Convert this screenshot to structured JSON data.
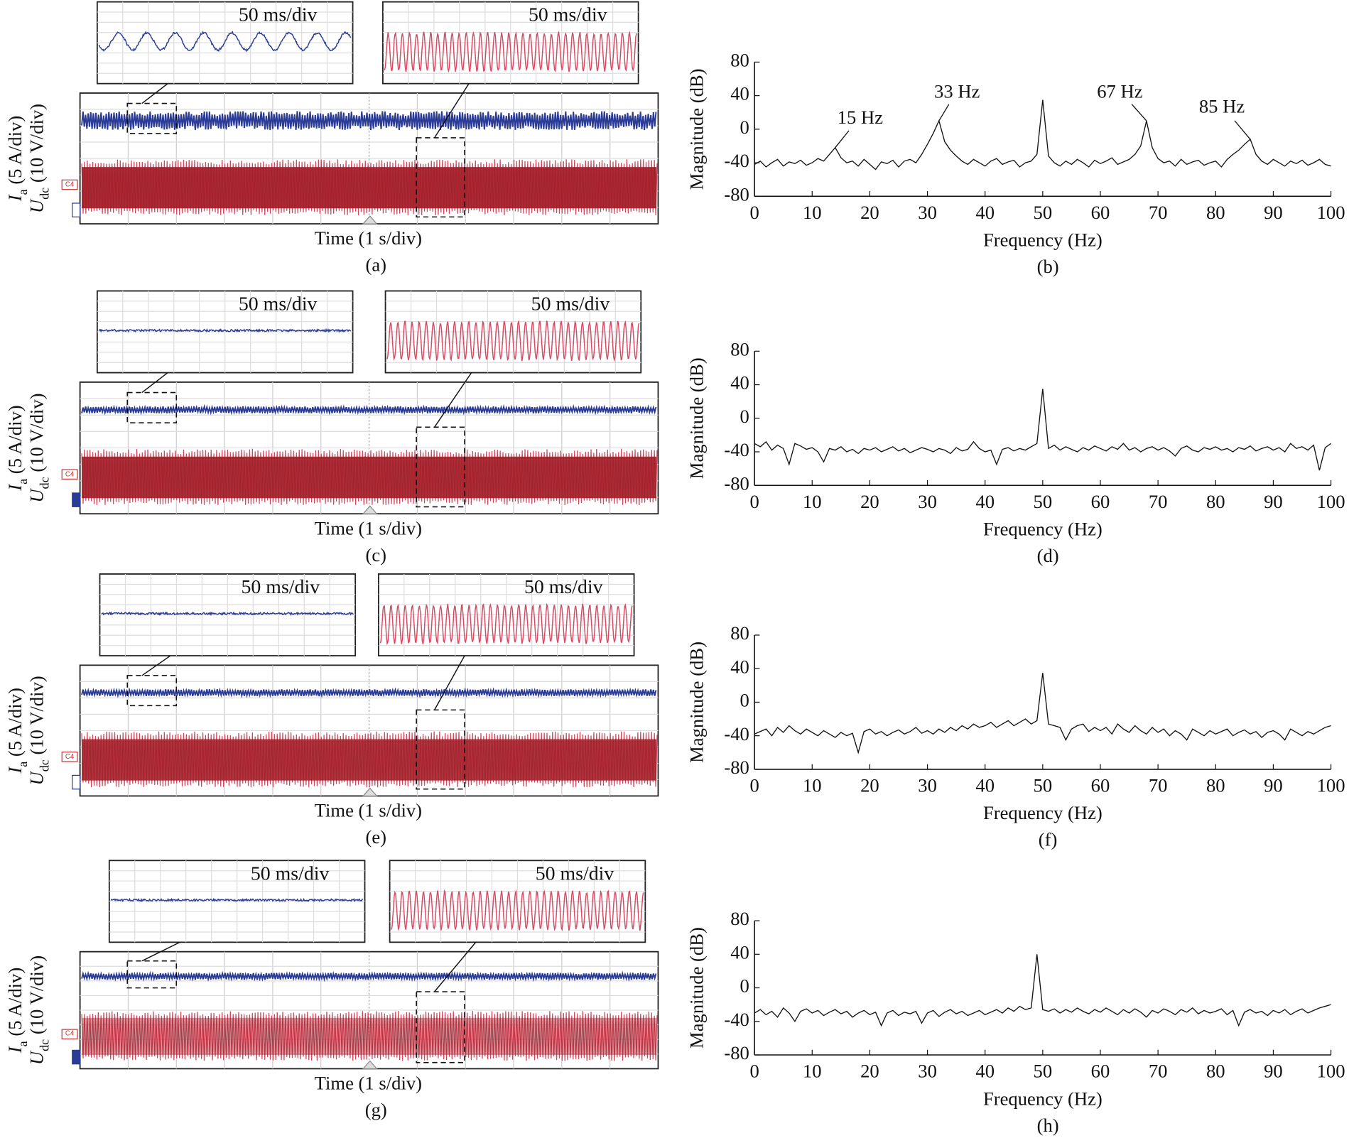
{
  "scope_panels": [
    {
      "inset_left": "50 ms/div",
      "inset_right": "50 ms/div",
      "channel_tag": "C4",
      "ylabel_current": {
        "symbol": "I",
        "subscript": "a",
        "unit": " (5 A/div)"
      },
      "ylabel_voltage": {
        "symbol": "U",
        "subscript": "dc",
        "unit": " (10 V/div)"
      },
      "xlabel": "Time (1 s/div)",
      "caption": "(a)"
    },
    {
      "inset_left": "50 ms/div",
      "inset_right": "50 ms/div",
      "channel_tag": "C4",
      "ylabel_current": {
        "symbol": "I",
        "subscript": "a",
        "unit": " (5 A/div)"
      },
      "ylabel_voltage": {
        "symbol": "U",
        "subscript": "dc",
        "unit": " (10 V/div)"
      },
      "xlabel": "Time (1 s/div)",
      "caption": "(c)"
    },
    {
      "inset_left": "50 ms/div",
      "inset_right": "50 ms/div",
      "channel_tag": "C4",
      "ylabel_current": {
        "symbol": "I",
        "subscript": "a",
        "unit": " (5 A/div)"
      },
      "ylabel_voltage": {
        "symbol": "U",
        "subscript": "dc",
        "unit": " (10 V/div)"
      },
      "xlabel": "Time (1 s/div)",
      "caption": "(e)"
    },
    {
      "inset_left": "50 ms/div",
      "inset_right": "50 ms/div",
      "channel_tag": "C4",
      "ylabel_current": {
        "symbol": "I",
        "subscript": "a",
        "unit": " (5 A/div)"
      },
      "ylabel_voltage": {
        "symbol": "U",
        "subscript": "dc",
        "unit": " (10 V/div)"
      },
      "xlabel": "Time (1 s/div)",
      "caption": "(g)"
    }
  ],
  "chart_data": [
    {
      "type": "line",
      "xlabel": "Frequency (Hz)",
      "ylabel": "Magnitude (dB)",
      "caption": "(b)",
      "color": "#111111",
      "xlim": [
        0,
        100
      ],
      "ylim": [
        -80,
        80
      ],
      "xticks": [
        0,
        10,
        20,
        30,
        40,
        50,
        60,
        70,
        80,
        90,
        100
      ],
      "yticks": [
        80,
        40,
        0,
        -40,
        -80
      ],
      "x": [
        0,
        1,
        2,
        3,
        4,
        5,
        6,
        7,
        8,
        9,
        10,
        11,
        12,
        13,
        14,
        15,
        16,
        17,
        18,
        19,
        20,
        21,
        22,
        23,
        24,
        25,
        26,
        27,
        28,
        29,
        30,
        31,
        32,
        33,
        34,
        35,
        36,
        37,
        38,
        39,
        40,
        41,
        42,
        43,
        44,
        45,
        46,
        47,
        48,
        49,
        50,
        51,
        52,
        53,
        54,
        55,
        56,
        57,
        58,
        59,
        60,
        61,
        62,
        63,
        64,
        65,
        66,
        67,
        68,
        69,
        70,
        71,
        72,
        73,
        74,
        75,
        76,
        77,
        78,
        79,
        80,
        81,
        82,
        83,
        84,
        85,
        86,
        87,
        88,
        89,
        90,
        91,
        92,
        93,
        94,
        95,
        96,
        97,
        98,
        99,
        100
      ],
      "values": [
        -42,
        -38,
        -45,
        -40,
        -36,
        -44,
        -39,
        -41,
        -37,
        -43,
        -40,
        -35,
        -38,
        -30,
        -22,
        -34,
        -40,
        -38,
        -44,
        -36,
        -42,
        -48,
        -39,
        -41,
        -37,
        -45,
        -38,
        -36,
        -40,
        -30,
        -18,
        -5,
        10,
        -15,
        -25,
        -32,
        -38,
        -42,
        -36,
        -40,
        -44,
        -38,
        -35,
        -42,
        -39,
        -37,
        -45,
        -40,
        -38,
        -30,
        35,
        -32,
        -40,
        -44,
        -38,
        -42,
        -36,
        -40,
        -45,
        -37,
        -41,
        -38,
        -34,
        -42,
        -39,
        -36,
        -30,
        -20,
        10,
        -22,
        -35,
        -40,
        -38,
        -44,
        -36,
        -42,
        -39,
        -37,
        -43,
        -40,
        -38,
        -45,
        -36,
        -30,
        -25,
        -18,
        -12,
        -30,
        -38,
        -42,
        -36,
        -40,
        -44,
        -38,
        -41,
        -37,
        -43,
        -40,
        -36,
        -42,
        -44
      ],
      "annotations": [
        {
          "text": "15 Hz",
          "x": 14,
          "y": -22
        },
        {
          "text": "33 Hz",
          "x": 32,
          "y": 10
        },
        {
          "text": "67 Hz",
          "x": 68,
          "y": 10
        },
        {
          "text": "85 Hz",
          "x": 86,
          "y": -12
        }
      ]
    },
    {
      "type": "line",
      "xlabel": "Frequency (Hz)",
      "ylabel": "Magnitude (dB)",
      "caption": "(d)",
      "color": "#111111",
      "xlim": [
        0,
        100
      ],
      "ylim": [
        -80,
        80
      ],
      "xticks": [
        0,
        10,
        20,
        30,
        40,
        50,
        60,
        70,
        80,
        90,
        100
      ],
      "yticks": [
        80,
        40,
        0,
        -40,
        -80
      ],
      "x": [
        0,
        1,
        2,
        3,
        4,
        5,
        6,
        7,
        8,
        9,
        10,
        11,
        12,
        13,
        14,
        15,
        16,
        17,
        18,
        19,
        20,
        21,
        22,
        23,
        24,
        25,
        26,
        27,
        28,
        29,
        30,
        31,
        32,
        33,
        34,
        35,
        36,
        37,
        38,
        39,
        40,
        41,
        42,
        43,
        44,
        45,
        46,
        47,
        48,
        49,
        50,
        51,
        52,
        53,
        54,
        55,
        56,
        57,
        58,
        59,
        60,
        61,
        62,
        63,
        64,
        65,
        66,
        67,
        68,
        69,
        70,
        71,
        72,
        73,
        74,
        75,
        76,
        77,
        78,
        79,
        80,
        81,
        82,
        83,
        84,
        85,
        86,
        87,
        88,
        89,
        90,
        91,
        92,
        93,
        94,
        95,
        96,
        97,
        98,
        99,
        100
      ],
      "values": [
        -30,
        -34,
        -28,
        -38,
        -32,
        -36,
        -55,
        -30,
        -33,
        -37,
        -35,
        -40,
        -52,
        -36,
        -38,
        -34,
        -40,
        -37,
        -42,
        -36,
        -38,
        -35,
        -40,
        -37,
        -34,
        -39,
        -36,
        -41,
        -38,
        -35,
        -37,
        -40,
        -36,
        -38,
        -42,
        -35,
        -39,
        -37,
        -28,
        -36,
        -40,
        -38,
        -55,
        -37,
        -35,
        -39,
        -36,
        -38,
        -34,
        -30,
        35,
        -36,
        -32,
        -38,
        -34,
        -37,
        -40,
        -35,
        -38,
        -33,
        -36,
        -39,
        -34,
        -37,
        -30,
        -38,
        -35,
        -40,
        -36,
        -34,
        -38,
        -35,
        -39,
        -45,
        -36,
        -33,
        -38,
        -40,
        -35,
        -37,
        -34,
        -38,
        -36,
        -40,
        -35,
        -37,
        -33,
        -39,
        -36,
        -34,
        -38,
        -35,
        -40,
        -30,
        -36,
        -34,
        -38,
        -32,
        -62,
        -35,
        -30
      ]
    },
    {
      "type": "line",
      "xlabel": "Frequency (Hz)",
      "ylabel": "Magnitude (dB)",
      "caption": "(f)",
      "color": "#111111",
      "xlim": [
        0,
        100
      ],
      "ylim": [
        -80,
        80
      ],
      "xticks": [
        0,
        10,
        20,
        30,
        40,
        50,
        60,
        70,
        80,
        90,
        100
      ],
      "yticks": [
        80,
        40,
        0,
        -40,
        -80
      ],
      "x": [
        0,
        1,
        2,
        3,
        4,
        5,
        6,
        7,
        8,
        9,
        10,
        11,
        12,
        13,
        14,
        15,
        16,
        17,
        18,
        19,
        20,
        21,
        22,
        23,
        24,
        25,
        26,
        27,
        28,
        29,
        30,
        31,
        32,
        33,
        34,
        35,
        36,
        37,
        38,
        39,
        40,
        41,
        42,
        43,
        44,
        45,
        46,
        47,
        48,
        49,
        50,
        51,
        52,
        53,
        54,
        55,
        56,
        57,
        58,
        59,
        60,
        61,
        62,
        63,
        64,
        65,
        66,
        67,
        68,
        69,
        70,
        71,
        72,
        73,
        74,
        75,
        76,
        77,
        78,
        79,
        80,
        81,
        82,
        83,
        84,
        85,
        86,
        87,
        88,
        89,
        90,
        91,
        92,
        93,
        94,
        95,
        96,
        97,
        98,
        99,
        100
      ],
      "values": [
        -38,
        -35,
        -32,
        -40,
        -30,
        -36,
        -28,
        -34,
        -38,
        -32,
        -36,
        -40,
        -34,
        -38,
        -42,
        -36,
        -40,
        -37,
        -60,
        -35,
        -32,
        -38,
        -35,
        -40,
        -36,
        -33,
        -38,
        -35,
        -30,
        -37,
        -34,
        -38,
        -32,
        -36,
        -30,
        -34,
        -28,
        -32,
        -26,
        -30,
        -28,
        -24,
        -30,
        -26,
        -22,
        -28,
        -24,
        -20,
        -26,
        -22,
        35,
        -26,
        -28,
        -30,
        -45,
        -32,
        -28,
        -26,
        -35,
        -30,
        -34,
        -30,
        -38,
        -26,
        -32,
        -36,
        -28,
        -34,
        -38,
        -30,
        -36,
        -32,
        -40,
        -34,
        -38,
        -45,
        -32,
        -36,
        -40,
        -34,
        -38,
        -35,
        -32,
        -40,
        -36,
        -33,
        -38,
        -35,
        -42,
        -36,
        -34,
        -38,
        -45,
        -32,
        -36,
        -40,
        -35,
        -38,
        -34,
        -30,
        -28
      ]
    },
    {
      "type": "line",
      "xlabel": "Frequency (Hz)",
      "ylabel": "Magnitude (dB)",
      "caption": "(h)",
      "color": "#111111",
      "xlim": [
        0,
        100
      ],
      "ylim": [
        -80,
        80
      ],
      "xticks": [
        0,
        10,
        20,
        30,
        40,
        50,
        60,
        70,
        80,
        90,
        100
      ],
      "yticks": [
        80,
        40,
        0,
        -40,
        -80
      ],
      "x": [
        0,
        1,
        2,
        3,
        4,
        5,
        6,
        7,
        8,
        9,
        10,
        11,
        12,
        13,
        14,
        15,
        16,
        17,
        18,
        19,
        20,
        21,
        22,
        23,
        24,
        25,
        26,
        27,
        28,
        29,
        30,
        31,
        32,
        33,
        34,
        35,
        36,
        37,
        38,
        39,
        40,
        41,
        42,
        43,
        44,
        45,
        46,
        47,
        48,
        49,
        50,
        51,
        52,
        53,
        54,
        55,
        56,
        57,
        58,
        59,
        60,
        61,
        62,
        63,
        64,
        65,
        66,
        67,
        68,
        69,
        70,
        71,
        72,
        73,
        74,
        75,
        76,
        77,
        78,
        79,
        80,
        81,
        82,
        83,
        84,
        85,
        86,
        87,
        88,
        89,
        90,
        91,
        92,
        93,
        94,
        95,
        96,
        97,
        98,
        99,
        100
      ],
      "values": [
        -30,
        -26,
        -32,
        -28,
        -35,
        -24,
        -30,
        -40,
        -28,
        -25,
        -30,
        -27,
        -33,
        -29,
        -26,
        -31,
        -28,
        -35,
        -30,
        -27,
        -32,
        -29,
        -45,
        -30,
        -27,
        -33,
        -29,
        -31,
        -28,
        -42,
        -30,
        -27,
        -34,
        -29,
        -26,
        -31,
        -28,
        -33,
        -30,
        -27,
        -32,
        -29,
        -26,
        -30,
        -24,
        -28,
        -22,
        -26,
        -24,
        40,
        -26,
        -28,
        -25,
        -30,
        -26,
        -29,
        -24,
        -28,
        -31,
        -26,
        -29,
        -24,
        -28,
        -32,
        -26,
        -30,
        -25,
        -29,
        -35,
        -27,
        -30,
        -25,
        -28,
        -32,
        -26,
        -29,
        -24,
        -31,
        -27,
        -30,
        -28,
        -25,
        -32,
        -27,
        -45,
        -29,
        -26,
        -30,
        -28,
        -33,
        -27,
        -30,
        -26,
        -32,
        -28,
        -25,
        -30,
        -27,
        -24,
        -22,
        -20
      ]
    }
  ]
}
